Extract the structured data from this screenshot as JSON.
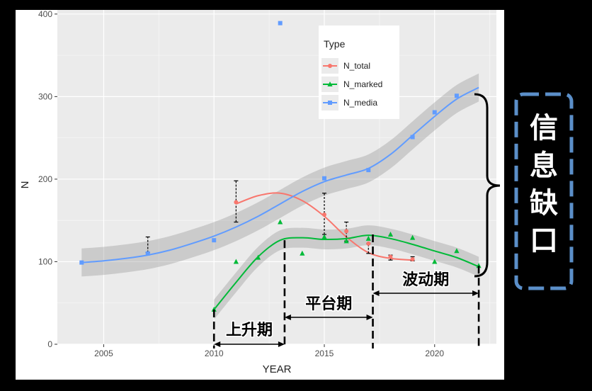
{
  "chart_data": {
    "type": "scatter",
    "xlabel": "YEAR",
    "ylabel": "N",
    "xlim": [
      2002.9,
      2022.8
    ],
    "ylim": [
      0,
      405
    ],
    "xticks": [
      2005,
      2010,
      2015,
      2020
    ],
    "yticks": [
      0,
      100,
      200,
      300,
      400
    ],
    "grid": true,
    "legend": {
      "title": "Type",
      "placement": "top-right",
      "entries": [
        {
          "name": "N_total",
          "color": "#F8766D",
          "marker": "circle"
        },
        {
          "name": "N_marked",
          "color": "#00BA38",
          "marker": "triangle"
        },
        {
          "name": "N_media",
          "color": "#619CFF",
          "marker": "square"
        }
      ]
    },
    "series": [
      {
        "name": "N_total",
        "color": "#F8766D",
        "marker": "circle",
        "points": [
          [
            2011,
            172
          ],
          [
            2015,
            157
          ],
          [
            2016,
            137
          ],
          [
            2017,
            122
          ],
          [
            2018,
            106
          ],
          [
            2019,
            103
          ]
        ],
        "errorbars": [
          [
            2007,
            111,
            130
          ],
          [
            2011,
            148,
            198
          ],
          [
            2015,
            133,
            183
          ],
          [
            2016,
            125,
            148
          ],
          [
            2017,
            110,
            122
          ],
          [
            2018,
            102,
            108
          ],
          [
            2019,
            101,
            106
          ]
        ],
        "smooth": [
          [
            2011,
            170
          ],
          [
            2012,
            180
          ],
          [
            2013,
            183
          ],
          [
            2014,
            174
          ],
          [
            2015,
            155
          ],
          [
            2016,
            130
          ],
          [
            2017,
            111
          ],
          [
            2018,
            104
          ],
          [
            2019,
            102
          ]
        ]
      },
      {
        "name": "N_marked",
        "color": "#00BA38",
        "marker": "triangle",
        "points": [
          [
            2010,
            42
          ],
          [
            2011,
            100
          ],
          [
            2012,
            105
          ],
          [
            2013,
            148
          ],
          [
            2014,
            110
          ],
          [
            2015,
            130
          ],
          [
            2016,
            125
          ],
          [
            2017,
            128
          ],
          [
            2018,
            133
          ],
          [
            2019,
            129
          ],
          [
            2020,
            100
          ],
          [
            2021,
            113
          ],
          [
            2022,
            95
          ]
        ],
        "smooth": [
          [
            2010,
            42
          ],
          [
            2011,
            75
          ],
          [
            2012,
            106
          ],
          [
            2013,
            126
          ],
          [
            2014,
            129
          ],
          [
            2015,
            127
          ],
          [
            2016,
            128
          ],
          [
            2017,
            132
          ],
          [
            2018,
            128
          ],
          [
            2019,
            121
          ],
          [
            2020,
            113
          ],
          [
            2021,
            105
          ],
          [
            2022,
            94
          ]
        ],
        "band": 12
      },
      {
        "name": "N_media",
        "color": "#619CFF",
        "marker": "square",
        "points": [
          [
            2004,
            99
          ],
          [
            2007,
            110
          ],
          [
            2010,
            126
          ],
          [
            2013,
            389
          ],
          [
            2015,
            201
          ],
          [
            2017,
            211
          ],
          [
            2019,
            251
          ],
          [
            2020,
            281
          ],
          [
            2021,
            301
          ]
        ],
        "smooth": [
          [
            2004,
            99
          ],
          [
            2005,
            101
          ],
          [
            2006,
            104
          ],
          [
            2007,
            108
          ],
          [
            2008,
            114
          ],
          [
            2009,
            122
          ],
          [
            2010,
            131
          ],
          [
            2011,
            142
          ],
          [
            2012,
            155
          ],
          [
            2013,
            170
          ],
          [
            2014,
            185
          ],
          [
            2015,
            197
          ],
          [
            2016,
            205
          ],
          [
            2017,
            213
          ],
          [
            2018,
            230
          ],
          [
            2019,
            253
          ],
          [
            2020,
            276
          ],
          [
            2021,
            297
          ],
          [
            2022,
            311
          ]
        ],
        "band": 17
      }
    ],
    "annotations": {
      "phases": [
        {
          "label": "上升期",
          "from": 2010,
          "to": 2013.2
        },
        {
          "label": "平台期",
          "from": 2013.2,
          "to": 2017.2
        },
        {
          "label": "波动期",
          "from": 2017.2,
          "to": 2022
        }
      ],
      "gap_label": "信息缺口",
      "gap_range": [
        95,
        311
      ]
    }
  }
}
